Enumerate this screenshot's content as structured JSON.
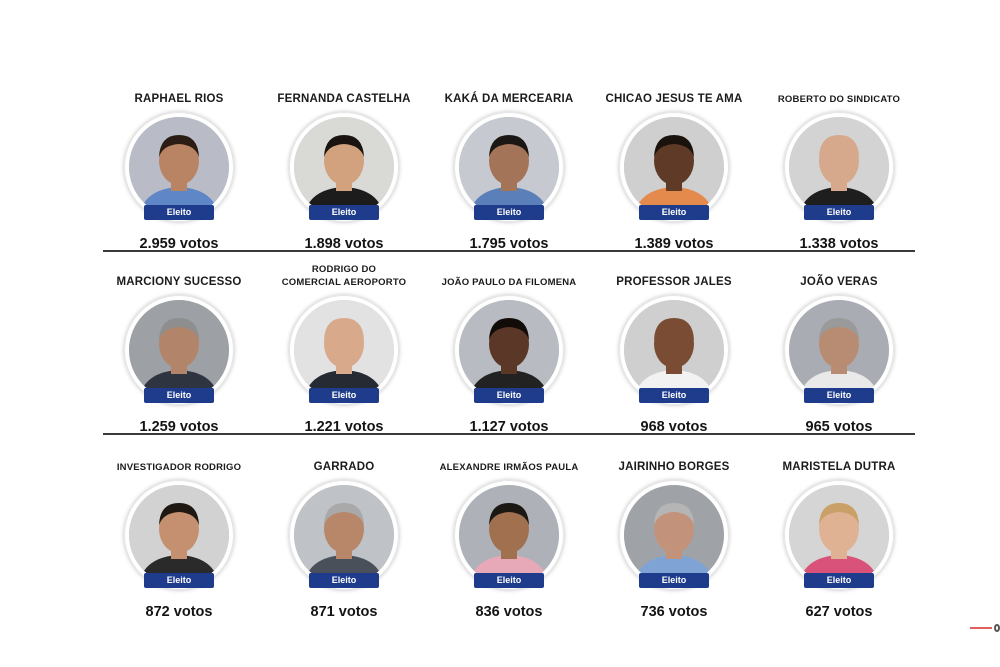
{
  "badge_label": "Eleito",
  "colors": {
    "badge": "#1f3c8c",
    "divider": "#3a3a3a"
  },
  "rows": [
    [
      {
        "name": "RAPHAEL RIOS",
        "votes": "2.959 votos",
        "bg": "#b9bcc6",
        "skin": "#b98464",
        "shirt": "#5f86c7",
        "hair": "#2b1d14"
      },
      {
        "name": "FERNANDA CASTELHA",
        "votes": "1.898 votos",
        "bg": "#d9d9d6",
        "skin": "#d2a27e",
        "shirt": "#1c1c1c",
        "hair": "#1a130f"
      },
      {
        "name": "KAKÁ DA MERCEARIA",
        "votes": "1.795 votos",
        "bg": "#c6c9cf",
        "skin": "#a47458",
        "shirt": "#5b7fb8",
        "hair": "#1a1714"
      },
      {
        "name": "CHICAO JESUS TE AMA",
        "votes": "1.389 votos",
        "bg": "#cfcfcf",
        "skin": "#5e3a27",
        "shirt": "#e58a4d",
        "hair": "#1a120c"
      },
      {
        "name": "ROBERTO DO SINDICATO",
        "votes": "1.338 votos",
        "bg": "#d3d3d3",
        "skin": "#d6a88c",
        "shirt": "#1e1e1e",
        "hair": "#d6a88c"
      }
    ],
    [
      {
        "name": "MARCIONY SUCESSO",
        "votes": "1.259 votos",
        "bg": "#9da0a4",
        "skin": "#b2856a",
        "shirt": "#2f3540",
        "hair": "#8e8e8e"
      },
      {
        "name": "RODRIGO DO\nCOMERCIAL AEROPORTO",
        "votes": "1.221 votos",
        "bg": "#e2e2e2",
        "skin": "#d8a98a",
        "shirt": "#262a33",
        "hair": "#d8a98a"
      },
      {
        "name": "JOÃO PAULO DA FILOMENA",
        "votes": "1.127 votos",
        "bg": "#b8bcc2",
        "skin": "#5a3726",
        "shirt": "#222222",
        "hair": "#120c09"
      },
      {
        "name": "PROFESSOR JALES",
        "votes": "968 votos",
        "bg": "#cfcfcf",
        "skin": "#7a4c33",
        "shirt": "#f2f2f2",
        "hair": "#7a4c33"
      },
      {
        "name": "JOÃO VERAS",
        "votes": "965 votos",
        "bg": "#a9adb3",
        "skin": "#b88c72",
        "shirt": "#e9e9e9",
        "hair": "#9a9a9a"
      }
    ],
    [
      {
        "name": "INVESTIGADOR RODRIGO",
        "votes": "872 votos",
        "bg": "#d2d2d2",
        "skin": "#c49070",
        "shirt": "#2a2a2a",
        "hair": "#1e1712"
      },
      {
        "name": "GARRADO",
        "votes": "871 votos",
        "bg": "#bfc2c6",
        "skin": "#b8876a",
        "shirt": "#4a505a",
        "hair": "#a9a9a9"
      },
      {
        "name": "ALEXANDRE IRMÃOS PAULA",
        "votes": "836 votos",
        "bg": "#aeb2b8",
        "skin": "#a0704f",
        "shirt": "#e7a8b8",
        "hair": "#1b1713"
      },
      {
        "name": "JAIRINHO BORGES",
        "votes": "736 votos",
        "bg": "#9fa3a8",
        "skin": "#c2937a",
        "shirt": "#7fa3d4",
        "hair": "#b5b5b5"
      },
      {
        "name": "MARISTELA DUTRA",
        "votes": "627 votos",
        "bg": "#d5d5d5",
        "skin": "#e0b294",
        "shirt": "#d9527a",
        "hair": "#c9a168"
      }
    ]
  ]
}
